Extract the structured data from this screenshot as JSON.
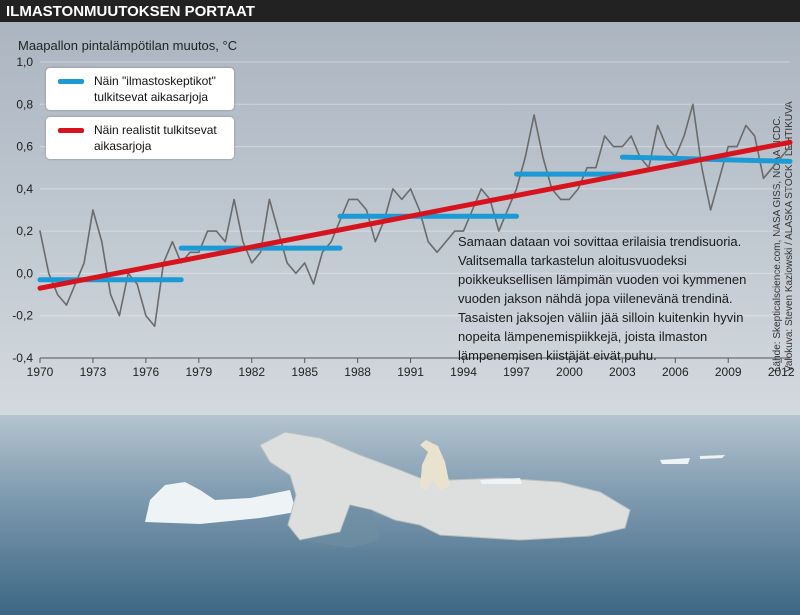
{
  "chart_data": {
    "type": "line",
    "title": "ILMASTONMUUTOKSEN PORTAAT",
    "y_label": "Maapallon pintalämpötilan muutos, °C",
    "annotation": "Samaan dataan voi sovittaa erilaisia trendisuoria. Valitsemalla tarkastelun aloitusvuodeksi poikkeuksellisen lämpimän vuoden voi kymmenen vuoden jakson nähdä jopa viilenevänä trendinä. Tasaisten jaksojen väliin jää silloin kuitenkin hyvin nopeita lämpenemispiikkejä, joista ilmaston lämpenemisen kiistäjät eivät puhu.",
    "source": [
      "Lähde: Skepticalscience.com, NASA GISS, NOAA NCDC.",
      "Valokuva: Steven Kazlowski / ALASKA STOCK / LEHTIKUVA"
    ],
    "xlim": [
      1970,
      2012.5
    ],
    "xticks": [
      1970,
      1973,
      1976,
      1979,
      1982,
      1985,
      1988,
      1991,
      1994,
      1997,
      2000,
      2003,
      2006,
      2009,
      2012
    ],
    "ylim": [
      -0.4,
      1.0
    ],
    "yticks": [
      {
        "value": -0.4,
        "label": "-0,4"
      },
      {
        "value": -0.2,
        "label": "-0,2"
      },
      {
        "value": 0,
        "label": "0,0"
      },
      {
        "value": 0.2,
        "label": "0,2"
      },
      {
        "value": 0.4,
        "label": "0,4"
      },
      {
        "value": 0.6,
        "label": "0,6"
      },
      {
        "value": 0.8,
        "label": "0,8"
      },
      {
        "value": 1.0,
        "label": "1,0"
      }
    ],
    "grid": true,
    "legend": "upper left",
    "series": [
      {
        "color": "#6b6b6b",
        "x": [
          1970,
          1970.5,
          1971,
          1971.5,
          1972,
          1972.5,
          1973,
          1973.5,
          1974,
          1974.5,
          1975,
          1975.5,
          1976,
          1976.5,
          1977,
          1977.5,
          1978,
          1978.5,
          1979,
          1979.5,
          1980,
          1980.5,
          1981,
          1981.5,
          1982,
          1982.5,
          1983,
          1983.5,
          1984,
          1984.5,
          1985,
          1985.5,
          1986,
          1986.5,
          1987,
          1987.5,
          1988,
          1988.5,
          1989,
          1989.5,
          1990,
          1990.5,
          1991,
          1991.5,
          1992,
          1992.5,
          1993,
          1993.5,
          1994,
          1994.5,
          1995,
          1995.5,
          1996,
          1996.5,
          1997,
          1997.5,
          1998,
          1998.5,
          1999,
          1999.5,
          2000,
          2000.5,
          2001,
          2001.5,
          2002,
          2002.5,
          2003,
          2003.5,
          2004,
          2004.5,
          2005,
          2005.5,
          2006,
          2006.5,
          2007,
          2007.5,
          2008,
          2008.5,
          2009,
          2009.5,
          2010,
          2010.5,
          2011,
          2011.5,
          2012,
          2012.5
        ],
        "values": [
          0.2,
          0.0,
          -0.1,
          -0.15,
          -0.05,
          0.05,
          0.3,
          0.15,
          -0.1,
          -0.2,
          0.0,
          -0.05,
          -0.2,
          -0.25,
          0.05,
          0.15,
          0.05,
          0.1,
          0.1,
          0.2,
          0.2,
          0.15,
          0.35,
          0.15,
          0.05,
          0.1,
          0.35,
          0.2,
          0.05,
          0.0,
          0.05,
          -0.05,
          0.1,
          0.15,
          0.25,
          0.35,
          0.35,
          0.3,
          0.15,
          0.25,
          0.4,
          0.35,
          0.4,
          0.3,
          0.15,
          0.1,
          0.15,
          0.2,
          0.2,
          0.3,
          0.4,
          0.35,
          0.2,
          0.3,
          0.4,
          0.55,
          0.75,
          0.55,
          0.4,
          0.35,
          0.35,
          0.4,
          0.5,
          0.5,
          0.65,
          0.6,
          0.6,
          0.65,
          0.55,
          0.5,
          0.7,
          0.6,
          0.55,
          0.65,
          0.8,
          0.5,
          0.3,
          0.45,
          0.6,
          0.6,
          0.7,
          0.65,
          0.45,
          0.5,
          0.55,
          0.6
        ]
      },
      {
        "name": "Näin \"ilmastoskeptikot\" tulkitsevat aikasarjoja",
        "color": "#1b9ad6",
        "x": [
          1970,
          1978,
          1978,
          1978,
          1987,
          1987,
          1987,
          1997,
          1997,
          1997,
          2003,
          2003,
          2003,
          2012.5
        ],
        "values": [
          -0.03,
          -0.03,
          null,
          0.12,
          0.12,
          null,
          0.27,
          0.27,
          null,
          0.47,
          0.47,
          null,
          0.55,
          0.53
        ]
      },
      {
        "name": "Näin realistit tulkitsevat aikasarjoja",
        "color": "#d7131d",
        "x": [
          1970,
          2012.5
        ],
        "values": [
          -0.07,
          0.62
        ]
      }
    ]
  }
}
